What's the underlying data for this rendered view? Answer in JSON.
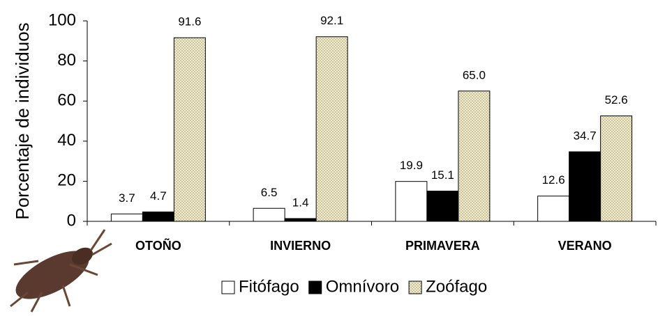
{
  "chart_data": {
    "type": "bar",
    "y_label": "Porcentaje de individuos",
    "categories": [
      "OTOÑO",
      "INVIERNO",
      "PRIMAVERA",
      "VERANO"
    ],
    "series": [
      {
        "name": "Fitófago",
        "color": "#ffffff",
        "values": [
          3.7,
          6.5,
          19.9,
          12.6
        ],
        "value_labels": [
          "3.7",
          "6.5",
          "19.9",
          "12.6"
        ]
      },
      {
        "name": "Omnívoro",
        "color": "#000000",
        "values": [
          4.7,
          1.4,
          15.1,
          34.7
        ],
        "value_labels": [
          "4.7",
          "1.4",
          "15.1",
          "34.7"
        ]
      },
      {
        "name": "Zoófago",
        "color": "#f2edc8",
        "values": [
          91.6,
          92.1,
          65,
          52.6
        ],
        "value_labels": [
          "91.6",
          "92.1",
          "65.0",
          "52.6"
        ]
      }
    ],
    "ylim": [
      0,
      100
    ],
    "yticks": [
      0,
      20,
      40,
      60,
      80,
      100
    ],
    "grid": false,
    "legend": "bottom"
  }
}
